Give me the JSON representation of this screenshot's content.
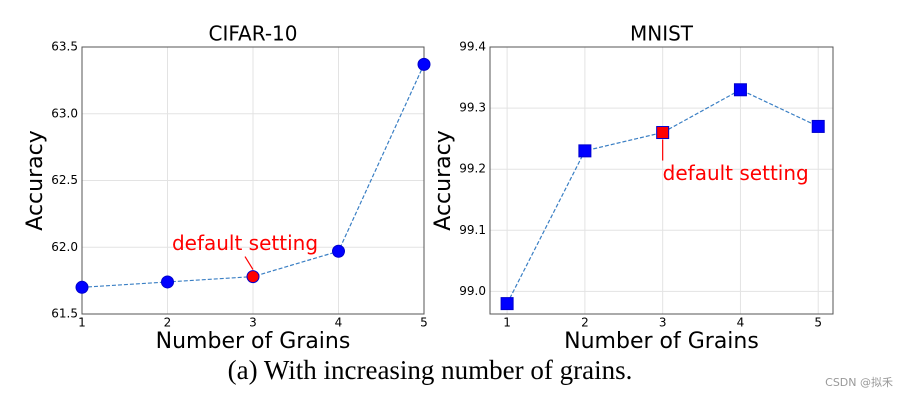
{
  "chart_data": [
    {
      "type": "line",
      "title": "CIFAR-10",
      "x_label": "Number of Grains",
      "y_label": "Accuracy",
      "x": [
        1,
        2,
        3,
        4,
        5
      ],
      "series": [
        {
          "color": "#0000ff",
          "line_color": "#3a7fc4",
          "marker": "circle",
          "point_colors": [
            "#0000ff",
            "#0000ff",
            "#ff0000",
            "#0000ff",
            "#0000ff"
          ],
          "values": [
            61.7,
            61.74,
            61.78,
            61.97,
            63.37
          ]
        }
      ],
      "xlim": [
        1,
        5
      ],
      "xticks": [
        1,
        2,
        3,
        4,
        5
      ],
      "ylim": [
        61.5,
        63.5
      ],
      "yticks": [
        61.5,
        {
          "value": 62,
          "label": "62.0"
        },
        62.5,
        {
          "value": 63,
          "label": "63.0"
        },
        63.5
      ],
      "grid": true,
      "annotation": {
        "text": "default setting",
        "x": 3,
        "color": "#ff0000"
      }
    },
    {
      "type": "line",
      "title": "MNIST",
      "x_label": "Number of Grains",
      "y_label": "Accuracy",
      "x": [
        1,
        2,
        3,
        4,
        5
      ],
      "series": [
        {
          "color": "#0000ff",
          "line_color": "#3a7fc4",
          "marker": "square",
          "point_colors": [
            "#0000ff",
            "#0000ff",
            "#ff0000",
            "#0000ff",
            "#0000ff"
          ],
          "values": [
            98.98,
            99.23,
            99.26,
            99.33,
            99.27
          ]
        }
      ],
      "xlim": [
        0.78,
        5.19
      ],
      "xticks": [
        1,
        2,
        3,
        4,
        5
      ],
      "ylim": [
        98.963,
        99.4
      ],
      "yticks": [
        {
          "value": 99,
          "label": "99.0"
        },
        99.1,
        99.2,
        99.3,
        99.4
      ],
      "grid": true,
      "annotation": {
        "text": "default setting",
        "x": 3,
        "color": "#ff0000"
      }
    }
  ],
  "caption": "(a) With increasing number of grains.",
  "watermark": "CSDN @拟禾"
}
